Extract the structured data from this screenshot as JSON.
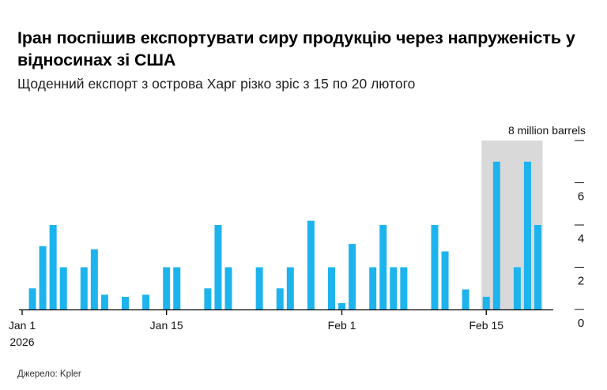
{
  "title": "Іран поспішив експортувати сиру продукцію через напруженість у відносинах зі США",
  "subtitle": "Щоденний експорт з острова Харг різко зріс з 15 по 20 лютого",
  "source": "Джерело: Kpler",
  "colors": {
    "bar": "#1db4ee",
    "highlight": "#d9d9d9",
    "axis": "#000000",
    "tick": "#111111"
  },
  "chart_data": {
    "type": "bar",
    "title": "Іран поспішив експортувати сиру продукцію через напруженість у відносинах зі США",
    "subtitle": "Щоденний експорт з острова Харг різко зріс з 15 по 20 лютого",
    "xlabel": "",
    "ylabel": "million barrels",
    "y_unit_label": "8 million barrels",
    "ylim": [
      0,
      8
    ],
    "yticks": [
      0,
      2,
      4,
      6,
      8
    ],
    "ytick_labels": [
      "0",
      "2",
      "4",
      "6",
      ""
    ],
    "x_start": "2026-01-01",
    "x_ticks": [
      {
        "day": 1,
        "label": "Jan 1",
        "sublabel": "2026"
      },
      {
        "day": 15,
        "label": "Jan 15",
        "sublabel": ""
      },
      {
        "day": 32,
        "label": "Feb 1",
        "sublabel": ""
      },
      {
        "day": 46,
        "label": "Feb 15",
        "sublabel": ""
      }
    ],
    "highlight_range": {
      "from_day": 46,
      "to_day": 51,
      "note": "15–20 Feb"
    },
    "data": [
      {
        "day": 2,
        "value": 1.0
      },
      {
        "day": 3,
        "value": 3.0
      },
      {
        "day": 4,
        "value": 4.0
      },
      {
        "day": 5,
        "value": 2.0
      },
      {
        "day": 7,
        "value": 2.0
      },
      {
        "day": 8,
        "value": 2.85
      },
      {
        "day": 9,
        "value": 0.7
      },
      {
        "day": 11,
        "value": 0.6
      },
      {
        "day": 13,
        "value": 0.7
      },
      {
        "day": 15,
        "value": 2.0
      },
      {
        "day": 16,
        "value": 2.0
      },
      {
        "day": 19,
        "value": 1.0
      },
      {
        "day": 20,
        "value": 4.0
      },
      {
        "day": 21,
        "value": 2.0
      },
      {
        "day": 24,
        "value": 2.0
      },
      {
        "day": 26,
        "value": 1.0
      },
      {
        "day": 27,
        "value": 2.0
      },
      {
        "day": 29,
        "value": 4.2
      },
      {
        "day": 31,
        "value": 2.0
      },
      {
        "day": 32,
        "value": 0.3
      },
      {
        "day": 33,
        "value": 3.1
      },
      {
        "day": 35,
        "value": 2.0
      },
      {
        "day": 36,
        "value": 4.0
      },
      {
        "day": 37,
        "value": 2.0
      },
      {
        "day": 38,
        "value": 2.0
      },
      {
        "day": 41,
        "value": 4.0
      },
      {
        "day": 42,
        "value": 2.75
      },
      {
        "day": 44,
        "value": 0.95
      },
      {
        "day": 46,
        "value": 0.6
      },
      {
        "day": 47,
        "value": 7.0
      },
      {
        "day": 49,
        "value": 2.0
      },
      {
        "day": 50,
        "value": 7.0
      },
      {
        "day": 51,
        "value": 4.0
      }
    ]
  }
}
